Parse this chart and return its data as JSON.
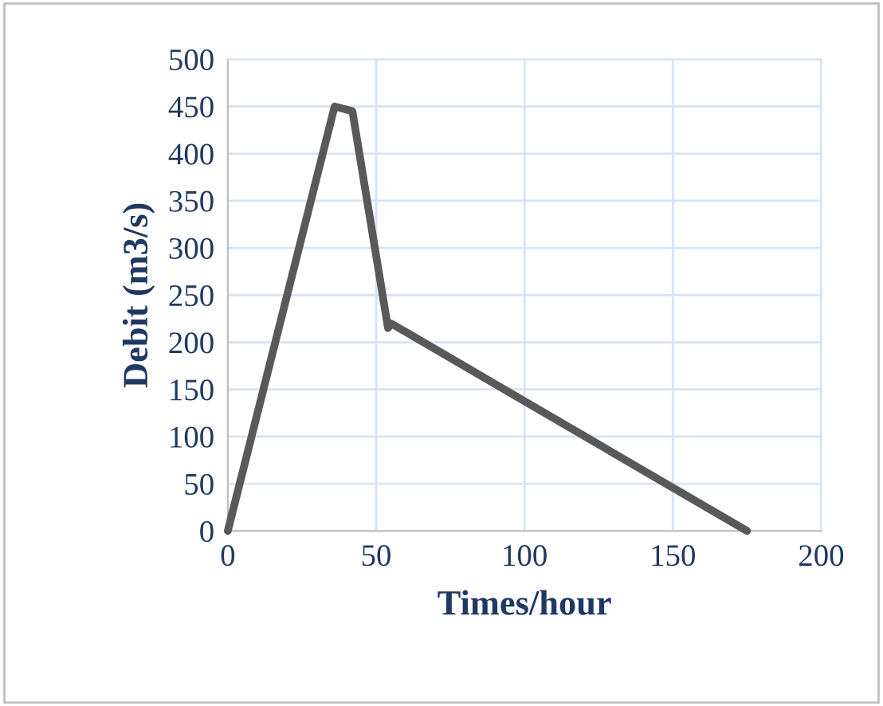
{
  "chart_data": {
    "type": "line",
    "xlabel": "Times/hour",
    "ylabel": "Debit (m3/s)",
    "series": [
      {
        "color": "#595959",
        "x": [
          0,
          36,
          42,
          54,
          55,
          175
        ],
        "values": [
          0,
          450,
          445,
          215,
          220,
          0
        ]
      }
    ],
    "xlim": [
      0,
      200
    ],
    "xticks": [
      0,
      50,
      100,
      150,
      200
    ],
    "ylim": [
      0,
      500
    ],
    "yticks": [
      0,
      50,
      100,
      150,
      200,
      250,
      300,
      350,
      400,
      450,
      500
    ],
    "grid": true,
    "marker": "none",
    "line_style": "solid",
    "legend": false
  }
}
